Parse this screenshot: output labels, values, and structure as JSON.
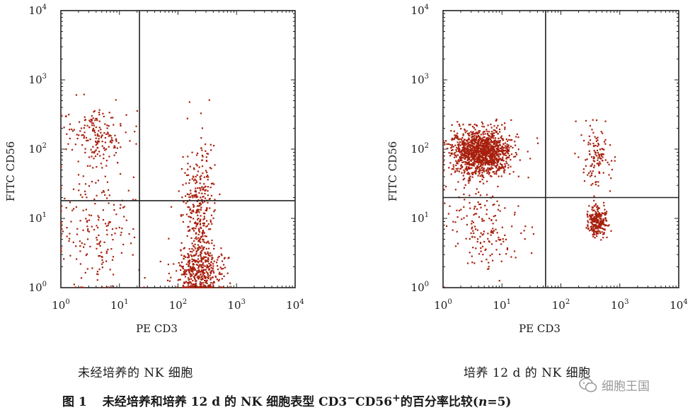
{
  "chart_data": [
    {
      "type": "scatter",
      "xlabel": "PE CD3",
      "ylabel": "FITC CD56",
      "xscale": "log",
      "yscale": "log",
      "xlim": [
        1,
        10000
      ],
      "ylim": [
        1,
        10000
      ],
      "xticks": [
        {
          "base": "10",
          "exp": "0"
        },
        {
          "base": "10",
          "exp": "1"
        },
        {
          "base": "10",
          "exp": "2"
        },
        {
          "base": "10",
          "exp": "3"
        },
        {
          "base": "10",
          "exp": "4"
        }
      ],
      "yticks": [
        {
          "base": "10",
          "exp": "0"
        },
        {
          "base": "10",
          "exp": "1"
        },
        {
          "base": "10",
          "exp": "2"
        },
        {
          "base": "10",
          "exp": "3"
        },
        {
          "base": "10",
          "exp": "4"
        }
      ],
      "quadrant_gate": {
        "x": 22,
        "y": 18
      },
      "caption": "未经培养的 NK 细胞",
      "point_color": "#a8200e",
      "populations": [
        {
          "x_center": 4.5,
          "y_center": 150,
          "x_spread_decades": 0.25,
          "y_spread_decades": 0.2,
          "points": 170
        },
        {
          "x_center": 3.5,
          "y_center": 8,
          "x_spread_decades": 0.35,
          "y_spread_decades": 0.45,
          "points": 190
        },
        {
          "x_center": 230,
          "y_center": 1.6,
          "x_spread_decades": 0.2,
          "y_spread_decades": 0.22,
          "points": 480
        },
        {
          "x_center": 230,
          "y_center": 15,
          "x_spread_decades": 0.13,
          "y_spread_decades": 0.45,
          "points": 310
        }
      ]
    },
    {
      "type": "scatter",
      "xlabel": "PE CD3",
      "ylabel": "FITC CD56",
      "xscale": "log",
      "yscale": "log",
      "xlim": [
        1,
        10000
      ],
      "ylim": [
        1,
        10000
      ],
      "xticks": [
        {
          "base": "10",
          "exp": "0"
        },
        {
          "base": "10",
          "exp": "1"
        },
        {
          "base": "10",
          "exp": "2"
        },
        {
          "base": "10",
          "exp": "3"
        },
        {
          "base": "10",
          "exp": "4"
        }
      ],
      "yticks": [
        {
          "base": "10",
          "exp": "0"
        },
        {
          "base": "10",
          "exp": "1"
        },
        {
          "base": "10",
          "exp": "2"
        },
        {
          "base": "10",
          "exp": "3"
        },
        {
          "base": "10",
          "exp": "4"
        }
      ],
      "quadrant_gate": {
        "x": 55,
        "y": 20
      },
      "caption": "培养 12 d 的 NK 细胞",
      "point_color": "#a8200e",
      "populations": [
        {
          "x_center": 4.5,
          "y_center": 90,
          "x_spread_decades": 0.25,
          "y_spread_decades": 0.16,
          "points": 1300
        },
        {
          "x_center": 5,
          "y_center": 8,
          "x_spread_decades": 0.3,
          "y_spread_decades": 0.35,
          "points": 180
        },
        {
          "x_center": 420,
          "y_center": 9,
          "x_spread_decades": 0.08,
          "y_spread_decades": 0.1,
          "points": 260
        },
        {
          "x_center": 380,
          "y_center": 80,
          "x_spread_decades": 0.12,
          "y_spread_decades": 0.2,
          "points": 120
        }
      ]
    }
  ],
  "figure_caption": {
    "label": "图 1",
    "text_before": "未经培养和培养 12 d 的 NK 细胞表型 CD3",
    "sup1": "−",
    "text_mid": "CD56",
    "sup2": "+",
    "text_after": "的百分率比较(",
    "n_var": "n",
    "n_eq": "=5)"
  },
  "watermark": {
    "text": "细胞王国",
    "icon": "wechat-icon"
  }
}
